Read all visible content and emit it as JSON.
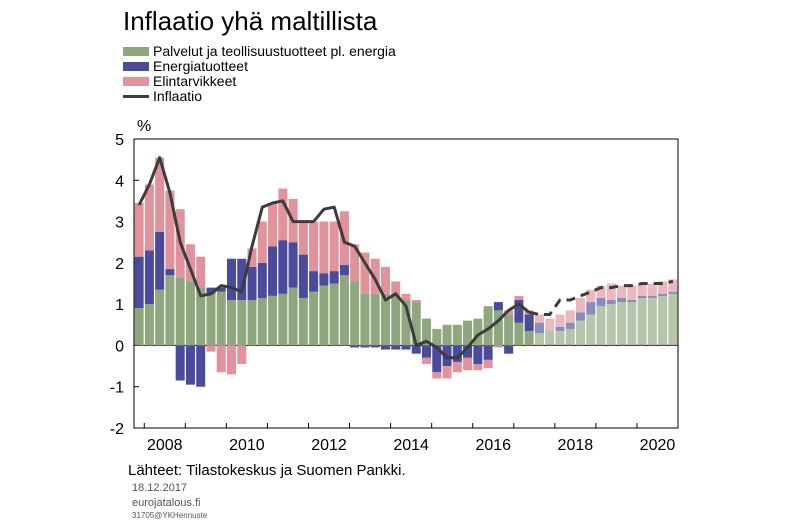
{
  "title": "Inflaatio yhä maltillista",
  "legend": [
    {
      "label": "Palvelut ja teollisuustuotteet pl. energia",
      "color": "#8fa77e",
      "kind": "bar"
    },
    {
      "label": "Energiatuotteet",
      "color": "#4b4b9c",
      "kind": "bar"
    },
    {
      "label": "Elintarvikkeet",
      "color": "#e0939a",
      "kind": "bar"
    },
    {
      "label": "Inflaatio",
      "color": "#3c3c3c",
      "kind": "line"
    }
  ],
  "unit_label": "%",
  "source": "Lähteet: Tilastokeskus ja Suomen Pankki.",
  "date": "18.12.2017",
  "site": "eurojatalous.fi",
  "code": "31705@YKHennuste",
  "chart_data": {
    "type": "bar",
    "stacked": true,
    "ylim": [
      -2,
      5
    ],
    "yticks": [
      "-2",
      "-1",
      "0",
      "1",
      "2",
      "3",
      "4",
      "5"
    ],
    "xticks": [
      "2008",
      "2010",
      "2012",
      "2014",
      "2016",
      "2018",
      "2020"
    ],
    "x_start": "2007Q4",
    "forecast_from": "2017Q3",
    "categories": [
      "2007Q4",
      "2008Q1",
      "2008Q2",
      "2008Q3",
      "2008Q4",
      "2009Q1",
      "2009Q2",
      "2009Q3",
      "2009Q4",
      "2010Q1",
      "2010Q2",
      "2010Q3",
      "2010Q4",
      "2011Q1",
      "2011Q2",
      "2011Q3",
      "2011Q4",
      "2012Q1",
      "2012Q2",
      "2012Q3",
      "2012Q4",
      "2013Q1",
      "2013Q2",
      "2013Q3",
      "2013Q4",
      "2014Q1",
      "2014Q2",
      "2014Q3",
      "2014Q4",
      "2015Q1",
      "2015Q2",
      "2015Q3",
      "2015Q4",
      "2016Q1",
      "2016Q2",
      "2016Q3",
      "2016Q4",
      "2017Q1",
      "2017Q2",
      "2017Q3",
      "2017Q4",
      "2018Q1",
      "2018Q2",
      "2018Q3",
      "2018Q4",
      "2019Q1",
      "2019Q2",
      "2019Q3",
      "2019Q4",
      "2020Q1",
      "2020Q2",
      "2020Q3",
      "2020Q4"
    ],
    "series": [
      {
        "name": "Palvelut ja teollisuustuotteet pl. energia",
        "color": "#8fa77e",
        "values": [
          0.9,
          1.0,
          1.35,
          1.7,
          1.65,
          1.55,
          1.4,
          1.25,
          1.3,
          1.1,
          1.1,
          1.1,
          1.15,
          1.2,
          1.25,
          1.4,
          1.15,
          1.3,
          1.45,
          1.5,
          1.7,
          1.55,
          1.25,
          1.25,
          1.25,
          1.2,
          1.1,
          1.05,
          0.65,
          0.4,
          0.5,
          0.5,
          0.6,
          0.65,
          0.95,
          0.85,
          0.75,
          0.55,
          0.35,
          0.3,
          0.35,
          0.35,
          0.4,
          0.6,
          0.75,
          0.95,
          1.0,
          1.05,
          1.05,
          1.15,
          1.15,
          1.2,
          1.25
        ]
      },
      {
        "name": "Energiatuotteet",
        "color": "#4b4b9c",
        "values": [
          1.25,
          1.3,
          1.4,
          0.15,
          -0.85,
          -0.95,
          -1.0,
          0.15,
          0.1,
          1.0,
          1.0,
          0.8,
          0.85,
          1.2,
          1.3,
          1.1,
          1.05,
          0.5,
          0.3,
          0.3,
          0.25,
          -0.05,
          -0.05,
          -0.05,
          -0.1,
          -0.1,
          -0.1,
          -0.2,
          -0.3,
          -0.65,
          -0.5,
          -0.4,
          -0.3,
          -0.45,
          -0.35,
          0.2,
          -0.2,
          0.55,
          0.4,
          0.25,
          0.0,
          0.1,
          0.15,
          0.2,
          0.3,
          0.2,
          0.1,
          0.1,
          0.05,
          0.05,
          0.05,
          0.05,
          0.05
        ]
      },
      {
        "name": "Elintarvikkeet",
        "color": "#e0939a",
        "values": [
          1.3,
          1.6,
          1.8,
          1.9,
          1.65,
          0.9,
          0.75,
          -0.15,
          -0.65,
          -0.7,
          -0.45,
          0.45,
          1.0,
          1.05,
          1.25,
          1.05,
          0.8,
          1.2,
          1.25,
          1.2,
          1.3,
          0.9,
          1.0,
          0.85,
          0.65,
          0.35,
          0.15,
          0.05,
          -0.15,
          -0.15,
          -0.3,
          -0.25,
          -0.3,
          -0.15,
          -0.2,
          -0.05,
          0.1,
          0.1,
          0.1,
          0.2,
          0.3,
          0.3,
          0.3,
          0.35,
          0.3,
          0.3,
          0.4,
          0.3,
          0.35,
          0.3,
          0.3,
          0.3,
          0.3
        ]
      },
      {
        "name": "Inflaatio",
        "type": "line",
        "color": "#3c3c3c",
        "values": [
          3.4,
          3.9,
          4.55,
          3.7,
          2.5,
          1.85,
          1.2,
          1.25,
          1.45,
          1.4,
          1.3,
          2.4,
          3.35,
          3.45,
          3.5,
          3.0,
          3.0,
          3.0,
          3.3,
          3.35,
          2.5,
          2.4,
          2.0,
          1.6,
          1.1,
          1.25,
          0.95,
          0.0,
          0.1,
          -0.05,
          -0.3,
          -0.3,
          -0.05,
          0.25,
          0.4,
          0.6,
          0.85,
          1.0,
          0.8,
          0.75,
          0.75,
          1.1,
          1.1,
          1.2,
          1.3,
          1.4,
          1.4,
          1.45,
          1.45,
          1.5,
          1.5,
          1.5,
          1.55
        ]
      }
    ]
  }
}
